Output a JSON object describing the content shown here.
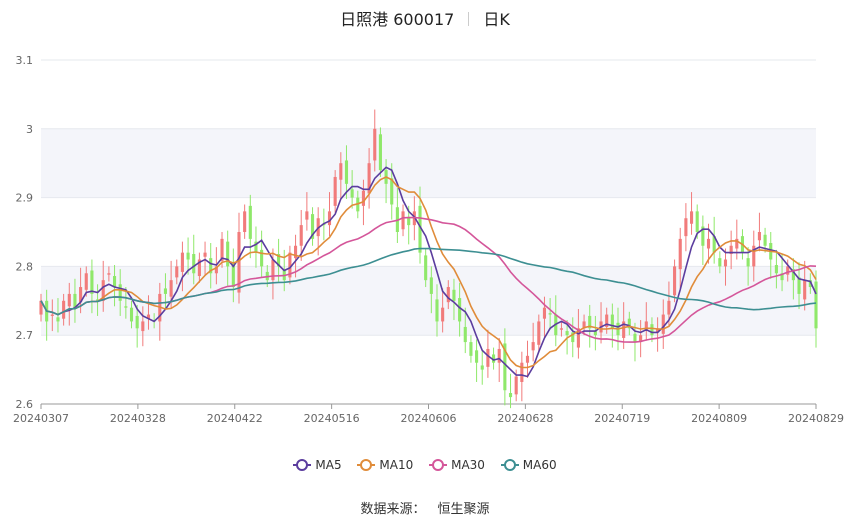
{
  "header": {
    "title": "日照港 600017",
    "period": "日K"
  },
  "legend": [
    {
      "name": "MA5",
      "color": "#5b3d9e"
    },
    {
      "name": "MA10",
      "color": "#e08c3a"
    },
    {
      "name": "MA30",
      "color": "#d4569a"
    },
    {
      "name": "MA60",
      "color": "#3d8f92"
    }
  ],
  "footer": {
    "label": "数据来源：",
    "source": "恒生聚源"
  },
  "colors": {
    "up": "#f17b7b",
    "down": "#8fe86a",
    "grid": "#e6e8ee",
    "band": "#f4f5fa"
  },
  "chart_data": {
    "type": "candlestick",
    "ylim": [
      2.6,
      3.1
    ],
    "y_ticks": [
      "2.6",
      "2.7",
      "2.8",
      "2.9",
      "3",
      "3.1"
    ],
    "x_tick_labels": [
      "20240307",
      "20240328",
      "20240422",
      "20240516",
      "20240606",
      "20240628",
      "20240719",
      "20240809",
      "20240829"
    ],
    "close": [
      2.75,
      2.72,
      2.73,
      2.72,
      2.75,
      2.76,
      2.74,
      2.77,
      2.79,
      2.76,
      2.75,
      2.78,
      2.79,
      2.77,
      2.75,
      2.74,
      2.72,
      2.71,
      2.72,
      2.73,
      2.72,
      2.76,
      2.76,
      2.78,
      2.8,
      2.82,
      2.81,
      2.79,
      2.81,
      2.82,
      2.79,
      2.8,
      2.84,
      2.8,
      2.77,
      2.85,
      2.88,
      2.84,
      2.82,
      2.8,
      2.78,
      2.81,
      2.8,
      2.78,
      2.82,
      2.83,
      2.86,
      2.88,
      2.84,
      2.87,
      2.86,
      2.88,
      2.93,
      2.95,
      2.92,
      2.9,
      2.88,
      2.91,
      2.95,
      3.0,
      2.94,
      2.92,
      2.89,
      2.85,
      2.88,
      2.86,
      2.88,
      2.82,
      2.78,
      2.76,
      2.72,
      2.74,
      2.77,
      2.75,
      2.72,
      2.69,
      2.67,
      2.66,
      2.65,
      2.68,
      2.66,
      2.68,
      2.62,
      2.61,
      2.64,
      2.66,
      2.67,
      2.69,
      2.72,
      2.74,
      2.73,
      2.7,
      2.71,
      2.7,
      2.69,
      2.71,
      2.72,
      2.71,
      2.7,
      2.72,
      2.73,
      2.71,
      2.7,
      2.72,
      2.71,
      2.69,
      2.7,
      2.72,
      2.7,
      2.71,
      2.73,
      2.75,
      2.8,
      2.84,
      2.87,
      2.88,
      2.85,
      2.83,
      2.84,
      2.82,
      2.8,
      2.81,
      2.83,
      2.84,
      2.82,
      2.8,
      2.83,
      2.85,
      2.83,
      2.81,
      2.79,
      2.78,
      2.8,
      2.78,
      2.76,
      2.78,
      2.77,
      2.71
    ]
  }
}
